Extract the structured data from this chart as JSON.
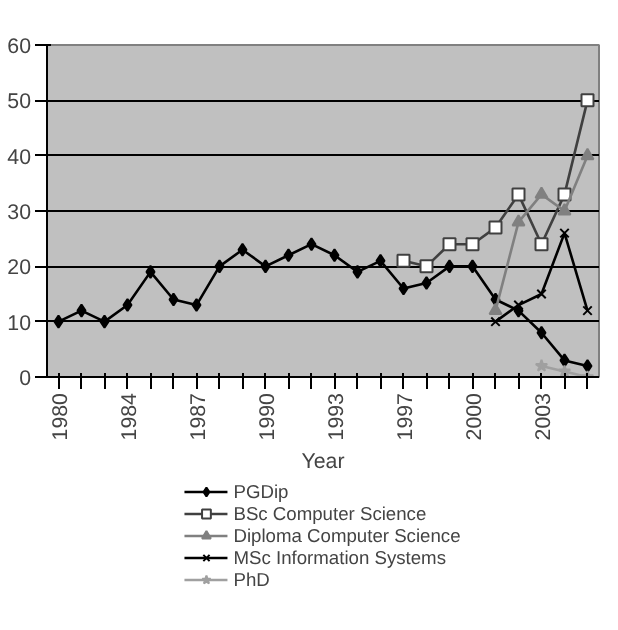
{
  "chart_data": {
    "type": "line",
    "xlabel": "Year",
    "categories": [
      "1980",
      null,
      null,
      "1984",
      null,
      null,
      "1987",
      null,
      null,
      "1990",
      null,
      null,
      "1993",
      null,
      null,
      "1997",
      null,
      null,
      "2000",
      null,
      null,
      "2003",
      null,
      null
    ],
    "series": [
      {
        "name": "PGDip",
        "color": "#000000",
        "marker": "diamond",
        "values": [
          10,
          12,
          10,
          13,
          19,
          14,
          13,
          20,
          23,
          20,
          22,
          24,
          22,
          19,
          21,
          16,
          17,
          20,
          20,
          14,
          12,
          8,
          3,
          2
        ]
      },
      {
        "name": "BSc Computer Science",
        "color": "#404040",
        "marker": "square",
        "values": [
          null,
          null,
          null,
          null,
          null,
          null,
          null,
          null,
          null,
          null,
          null,
          null,
          null,
          null,
          null,
          21,
          20,
          24,
          24,
          27,
          33,
          24,
          33,
          50
        ]
      },
      {
        "name": "Diploma Computer Science",
        "color": "#808080",
        "marker": "triangle",
        "values": [
          null,
          null,
          null,
          null,
          null,
          null,
          null,
          null,
          null,
          null,
          null,
          null,
          null,
          null,
          null,
          null,
          null,
          null,
          null,
          12,
          28,
          33,
          30,
          40
        ]
      },
      {
        "name": "MSc Information Systems",
        "color": "#000000",
        "marker": "cross",
        "values": [
          null,
          null,
          null,
          null,
          null,
          null,
          null,
          null,
          null,
          null,
          null,
          null,
          null,
          null,
          null,
          null,
          null,
          null,
          null,
          10,
          13,
          15,
          26,
          12
        ]
      },
      {
        "name": "PhD",
        "color": "#a0a0a0",
        "marker": "star",
        "values": [
          null,
          null,
          null,
          null,
          null,
          null,
          null,
          null,
          null,
          null,
          null,
          null,
          null,
          null,
          null,
          null,
          null,
          null,
          null,
          null,
          null,
          2,
          1,
          0
        ]
      }
    ],
    "ylim": [
      0,
      60
    ],
    "yticks": [
      0,
      10,
      20,
      30,
      40,
      50,
      60
    ],
    "grid": "y",
    "legend": "bottom"
  }
}
